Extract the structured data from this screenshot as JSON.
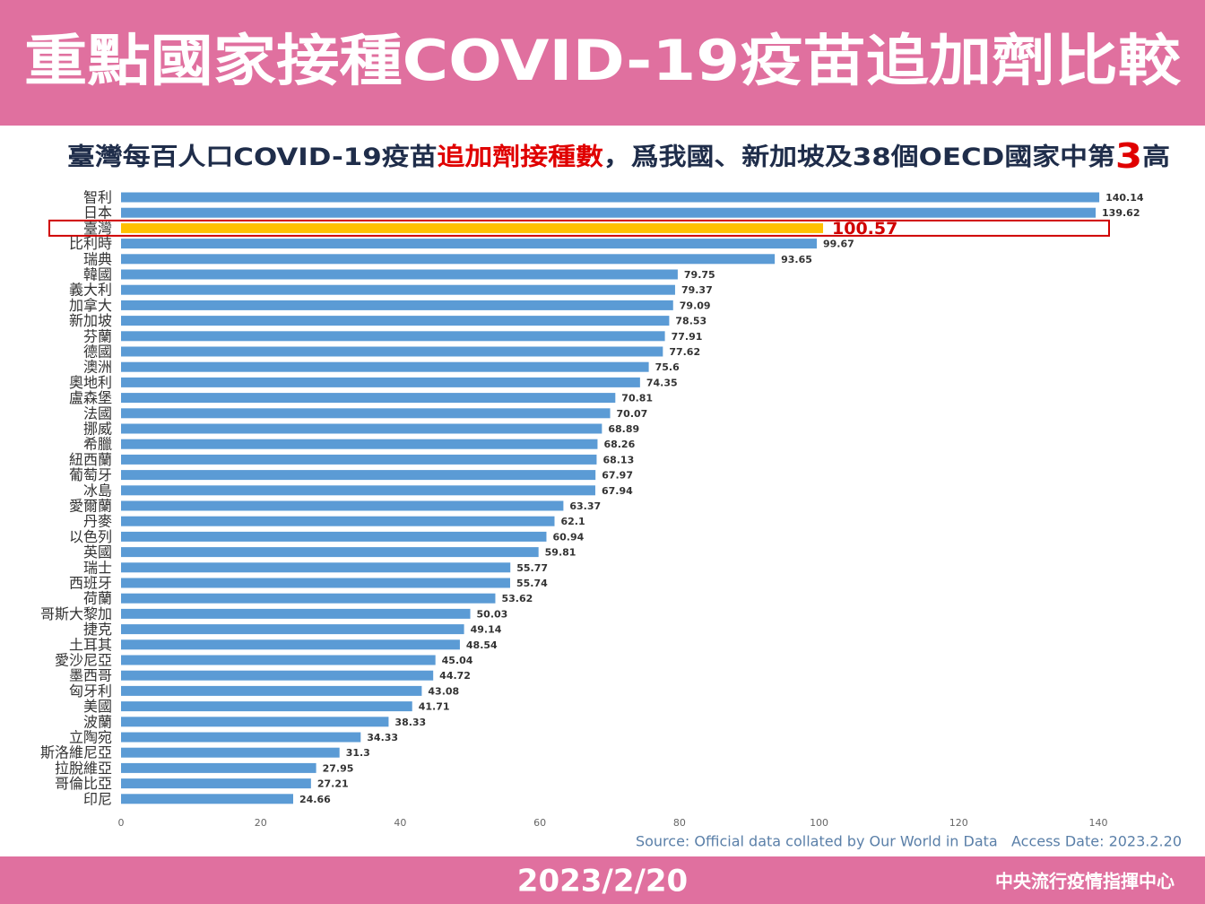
{
  "chart_data": {
    "type": "barh",
    "title": "重點國家接種COVID-19疫苗追加劑比較",
    "subtitle_parts": [
      "臺灣每百人口COVID-19疫苗",
      "追加劑接種數",
      "，爲我國、新加坡及38個OECD國家中第",
      "3",
      "高"
    ],
    "categories": [
      "智利",
      "日本",
      "臺灣",
      "比利時",
      "瑞典",
      "韓國",
      "義大利",
      "加拿大",
      "新加坡",
      "芬蘭",
      "德國",
      "澳洲",
      "奧地利",
      "盧森堡",
      "法國",
      "挪威",
      "希臘",
      "紐西蘭",
      "葡萄牙",
      "冰島",
      "愛爾蘭",
      "丹麥",
      "以色列",
      "英國",
      "瑞士",
      "西班牙",
      "荷蘭",
      "哥斯大黎加",
      "捷克",
      "土耳其",
      "愛沙尼亞",
      "墨西哥",
      "匈牙利",
      "美國",
      "波蘭",
      "立陶宛",
      "斯洛維尼亞",
      "拉脫維亞",
      "哥倫比亞",
      "印尼"
    ],
    "values": [
      140.14,
      139.62,
      100.57,
      99.67,
      93.65,
      79.75,
      79.37,
      79.09,
      78.53,
      77.91,
      77.62,
      75.6,
      74.35,
      70.81,
      70.07,
      68.89,
      68.26,
      68.13,
      67.97,
      67.94,
      63.37,
      62.1,
      60.94,
      59.81,
      55.77,
      55.74,
      53.62,
      50.03,
      49.14,
      48.54,
      45.04,
      44.72,
      43.08,
      41.71,
      38.33,
      34.33,
      31.3,
      27.95,
      27.21,
      24.66
    ],
    "color": "#5b9bd5",
    "colors": [
      "#5b9bd5",
      "#5b9bd5",
      "#ffc000",
      "#5b9bd5",
      "#5b9bd5",
      "#5b9bd5",
      "#5b9bd5",
      "#5b9bd5",
      "#5b9bd5",
      "#5b9bd5",
      "#5b9bd5",
      "#5b9bd5",
      "#5b9bd5",
      "#5b9bd5",
      "#5b9bd5",
      "#5b9bd5",
      "#5b9bd5",
      "#5b9bd5",
      "#5b9bd5",
      "#5b9bd5",
      "#5b9bd5",
      "#5b9bd5",
      "#5b9bd5",
      "#5b9bd5",
      "#5b9bd5",
      "#5b9bd5",
      "#5b9bd5",
      "#5b9bd5",
      "#5b9bd5",
      "#5b9bd5",
      "#5b9bd5",
      "#5b9bd5",
      "#5b9bd5",
      "#5b9bd5",
      "#5b9bd5",
      "#5b9bd5",
      "#5b9bd5",
      "#5b9bd5",
      "#5b9bd5",
      "#5b9bd5"
    ],
    "xlim": [
      0,
      140
    ],
    "xticks": [
      0,
      20,
      40,
      60,
      80,
      100,
      120,
      140
    ],
    "source": "Source: Official data collated by Our World in Data   Access Date: 2023.2.20",
    "date": "2023/2/20",
    "organization": "中央流行疫情指揮中心"
  }
}
